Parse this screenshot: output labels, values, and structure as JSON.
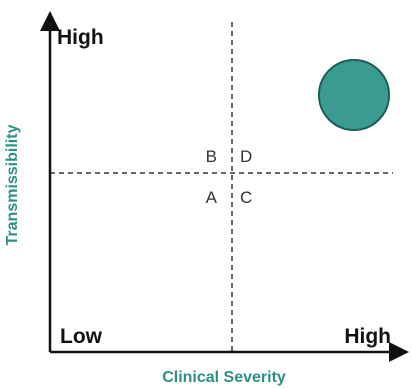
{
  "diagram": {
    "x_axis": {
      "title": "Clinical Severity",
      "low_label": "Low",
      "high_label": "High"
    },
    "y_axis": {
      "title": "Transmissibility",
      "high_label": "High"
    },
    "quadrants": {
      "top_left": "B",
      "top_right": "D",
      "bottom_left": "A",
      "bottom_right": "C"
    },
    "marker": {
      "quadrant": "D",
      "fill": "#3a9b91",
      "stroke": "#1d5e56"
    },
    "colors": {
      "axis_title": "#2f8f83",
      "axis_line": "#111111",
      "divider": "#333333"
    }
  }
}
